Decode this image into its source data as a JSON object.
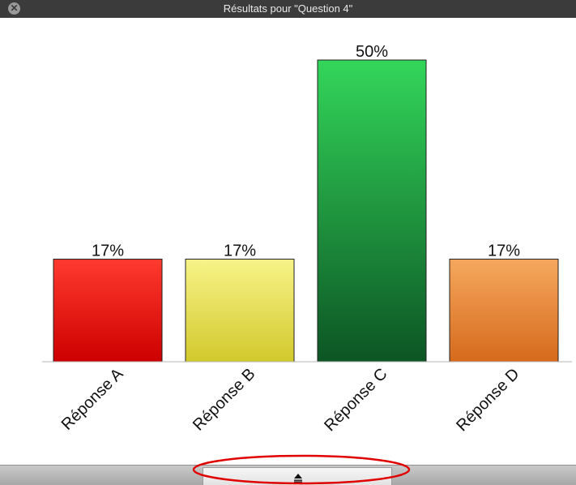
{
  "window": {
    "title": "Résultats pour \"Question 4\"",
    "close_icon": "close-circle-icon"
  },
  "chart_data": {
    "type": "bar",
    "categories": [
      "Réponse A",
      "Réponse B",
      "Réponse C",
      "Réponse D"
    ],
    "values": [
      17,
      17,
      50,
      17
    ],
    "value_labels": [
      "17%",
      "17%",
      "50%",
      "17%"
    ],
    "title": "",
    "xlabel": "",
    "ylabel": "",
    "ylim": [
      0,
      50
    ],
    "grid": false,
    "legend": "none",
    "colors": [
      {
        "top": "#ff3a2e",
        "bottom": "#cc0000",
        "stroke": "#222222"
      },
      {
        "top": "#f8f389",
        "bottom": "#d2c92c",
        "stroke": "#222222"
      },
      {
        "top": "#33d65a",
        "bottom": "#0c5524",
        "stroke": "#222222"
      },
      {
        "top": "#f6a85e",
        "bottom": "#d56a1c",
        "stroke": "#222222"
      }
    ]
  },
  "bottom_bar": {
    "toggle_icon": "eject-icon",
    "highlight_color": "#e00000"
  }
}
